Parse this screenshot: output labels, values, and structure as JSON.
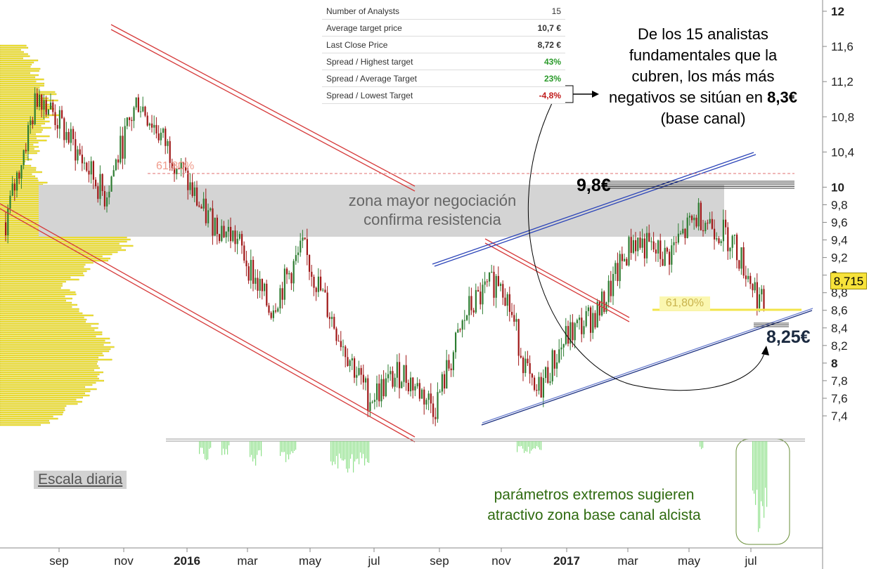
{
  "chart_data": {
    "type": "line",
    "title": "",
    "xlabel": "",
    "ylabel": "",
    "ylim": [
      7.25,
      12.1
    ],
    "yticks": [
      "12",
      "11,6",
      "11,2",
      "10,8",
      "10,4",
      "10",
      "9,8",
      "9,6",
      "9,4",
      "9,2",
      "9",
      "8,8",
      "8,6",
      "8,4",
      "8,2",
      "8",
      "7,8",
      "7,6",
      "7,4"
    ],
    "yticks_bold": [
      "12",
      "10",
      "9",
      "8"
    ],
    "xticks": [
      "sep",
      "nov",
      "2016",
      "mar",
      "may",
      "jul",
      "sep",
      "nov",
      "2017",
      "mar",
      "may",
      "jul"
    ],
    "xticks_bold": [
      "2016",
      "2017"
    ],
    "x": [
      "2015-08",
      "2015-09",
      "2015-10",
      "2015-11",
      "2015-12",
      "2016-01",
      "2016-02",
      "2016-03",
      "2016-04",
      "2016-05",
      "2016-06",
      "2016-07",
      "2016-08",
      "2016-09",
      "2016-10",
      "2016-11",
      "2016-12",
      "2017-01",
      "2017-02",
      "2017-03",
      "2017-04",
      "2017-05",
      "2017-06",
      "2017-07"
    ],
    "series": [
      {
        "values": [
          9.6,
          11.1,
          10.5,
          9.9,
          11.0,
          10.4,
          9.7,
          9.4,
          8.6,
          9.3,
          8.4,
          7.6,
          7.9,
          7.5,
          8.6,
          9.0,
          7.6,
          8.3,
          8.6,
          9.4,
          9.2,
          9.7,
          9.4,
          8.6
        ]
      }
    ],
    "last_price": "8,715",
    "annotations": {
      "fib_left": "61,80%",
      "fib_right": "61,80%",
      "level_high": "9,8€",
      "level_low": "8,25€",
      "zone": [
        "zona mayor negociación",
        "confirma resistencia"
      ],
      "analysts_note": [
        "De los 15 analistas",
        "fundamentales que la",
        "cubren, los más más",
        "negativos se sitúan en",
        "8,3€",
        "(base canal)"
      ],
      "scale": "Escala diaria",
      "params_note": [
        "parámetros extremos sugieren",
        "atractivo  zona base canal alcista"
      ]
    },
    "grid": false,
    "legend": "none"
  },
  "table": {
    "rows": [
      {
        "label": "Number of Analysts",
        "value": "15"
      },
      {
        "label": "Average target price",
        "value": "10,7 €"
      },
      {
        "label": "Last Close Price",
        "value": "8,72 €"
      },
      {
        "label": "Spread / Highest target",
        "value": "43%"
      },
      {
        "label": "Spread / Average Target",
        "value": "23%"
      },
      {
        "label": "Spread / Lowest Target",
        "value": "-4,8%"
      }
    ]
  },
  "colors": {
    "up_candle": "#2e7d32",
    "down_candle": "#a01818",
    "volume_profile": "#f2e43b",
    "trend_red": "#d63a3a",
    "trend_blue": "#2b44b8",
    "zone_gray": "#d5d5d5",
    "green_value": "#2a9a2a",
    "red_value": "#c01a1a"
  }
}
